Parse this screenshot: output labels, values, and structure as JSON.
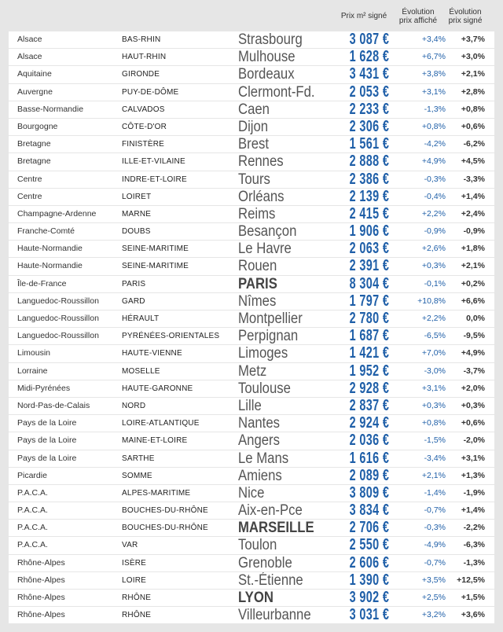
{
  "header": {
    "prix": "Prix m² signé",
    "evo_affiche_1": "Évolution",
    "evo_affiche_2": "prix affiché",
    "evo_signe_1": "Évolution",
    "evo_signe_2": "prix signé"
  },
  "rows": [
    {
      "region": "Alsace",
      "dept": "BAS-RHIN",
      "city": "Strasbourg",
      "price": "3 087 €",
      "evo_affiche": "+3,4%",
      "evo_signe": "+3,7%",
      "bold": false
    },
    {
      "region": "Alsace",
      "dept": "HAUT-RHIN",
      "city": "Mulhouse",
      "price": "1 628 €",
      "evo_affiche": "+6,7%",
      "evo_signe": "+3,0%",
      "bold": false
    },
    {
      "region": "Aquitaine",
      "dept": "GIRONDE",
      "city": "Bordeaux",
      "price": "3 431 €",
      "evo_affiche": "+3,8%",
      "evo_signe": "+2,1%",
      "bold": false
    },
    {
      "region": "Auvergne",
      "dept": "PUY-DE-DÔME",
      "city": "Clermont-Fd.",
      "price": "2 053 €",
      "evo_affiche": "+3,1%",
      "evo_signe": "+2,8%",
      "bold": false
    },
    {
      "region": "Basse-Normandie",
      "dept": "CALVADOS",
      "city": "Caen",
      "price": "2 233 €",
      "evo_affiche": "-1,3%",
      "evo_signe": "+0,8%",
      "bold": false
    },
    {
      "region": "Bourgogne",
      "dept": "CÔTE-D'OR",
      "city": "Dijon",
      "price": "2 306 €",
      "evo_affiche": "+0,8%",
      "evo_signe": "+0,6%",
      "bold": false
    },
    {
      "region": "Bretagne",
      "dept": "FINISTÈRE",
      "city": "Brest",
      "price": "1 561 €",
      "evo_affiche": "-4,2%",
      "evo_signe": "-6,2%",
      "bold": false
    },
    {
      "region": "Bretagne",
      "dept": "ILLE-ET-VILAINE",
      "city": "Rennes",
      "price": "2 888 €",
      "evo_affiche": "+4,9%",
      "evo_signe": "+4,5%",
      "bold": false
    },
    {
      "region": "Centre",
      "dept": "INDRE-ET-LOIRE",
      "city": "Tours",
      "price": "2 386 €",
      "evo_affiche": "-0,3%",
      "evo_signe": "-3,3%",
      "bold": false
    },
    {
      "region": "Centre",
      "dept": "LOIRET",
      "city": "Orléans",
      "price": "2 139 €",
      "evo_affiche": "-0,4%",
      "evo_signe": "+1,4%",
      "bold": false
    },
    {
      "region": "Champagne-Ardenne",
      "dept": "MARNE",
      "city": "Reims",
      "price": "2 415 €",
      "evo_affiche": "+2,2%",
      "evo_signe": "+2,4%",
      "bold": false
    },
    {
      "region": "Franche-Comté",
      "dept": "DOUBS",
      "city": "Besançon",
      "price": "1 906 €",
      "evo_affiche": "-0,9%",
      "evo_signe": "-0,9%",
      "bold": false
    },
    {
      "region": "Haute-Normandie",
      "dept": "SEINE-MARITIME",
      "city": "Le Havre",
      "price": "2 063 €",
      "evo_affiche": "+2,6%",
      "evo_signe": "+1,8%",
      "bold": false
    },
    {
      "region": "Haute-Normandie",
      "dept": "SEINE-MARITIME",
      "city": "Rouen",
      "price": "2 391 €",
      "evo_affiche": "+0,3%",
      "evo_signe": "+2,1%",
      "bold": false
    },
    {
      "region": "Île-de-France",
      "dept": "PARIS",
      "city": "PARIS",
      "price": "8 304 €",
      "evo_affiche": "-0,1%",
      "evo_signe": "+0,2%",
      "bold": true
    },
    {
      "region": "Languedoc-Roussillon",
      "dept": "GARD",
      "city": "Nîmes",
      "price": "1 797 €",
      "evo_affiche": "+10,8%",
      "evo_signe": "+6,6%",
      "bold": false
    },
    {
      "region": "Languedoc-Roussillon",
      "dept": "HÉRAULT",
      "city": "Montpellier",
      "price": "2 780 €",
      "evo_affiche": "+2,2%",
      "evo_signe": "0,0%",
      "bold": false
    },
    {
      "region": "Languedoc-Roussillon",
      "dept": "PYRÉNÉES-ORIENTALES",
      "city": "Perpignan",
      "price": "1 687 €",
      "evo_affiche": "-6,5%",
      "evo_signe": "-9,5%",
      "bold": false
    },
    {
      "region": "Limousin",
      "dept": "HAUTE-VIENNE",
      "city": "Limoges",
      "price": "1 421 €",
      "evo_affiche": "+7,0%",
      "evo_signe": "+4,9%",
      "bold": false
    },
    {
      "region": "Lorraine",
      "dept": "MOSELLE",
      "city": "Metz",
      "price": "1 952 €",
      "evo_affiche": "-3,0%",
      "evo_signe": "-3,7%",
      "bold": false
    },
    {
      "region": "Midi-Pyrénées",
      "dept": "HAUTE-GARONNE",
      "city": "Toulouse",
      "price": "2 928 €",
      "evo_affiche": "+3,1%",
      "evo_signe": "+2,0%",
      "bold": false
    },
    {
      "region": "Nord-Pas-de-Calais",
      "dept": "NORD",
      "city": "Lille",
      "price": "2 837 €",
      "evo_affiche": "+0,3%",
      "evo_signe": "+0,3%",
      "bold": false
    },
    {
      "region": "Pays de la Loire",
      "dept": "LOIRE-ATLANTIQUE",
      "city": "Nantes",
      "price": "2 924 €",
      "evo_affiche": "+0,8%",
      "evo_signe": "+0,6%",
      "bold": false
    },
    {
      "region": "Pays de la Loire",
      "dept": "MAINE-ET-LOIRE",
      "city": "Angers",
      "price": "2 036 €",
      "evo_affiche": "-1,5%",
      "evo_signe": "-2,0%",
      "bold": false
    },
    {
      "region": "Pays de la Loire",
      "dept": "SARTHE",
      "city": "Le Mans",
      "price": "1 616 €",
      "evo_affiche": "-3,4%",
      "evo_signe": "+3,1%",
      "bold": false
    },
    {
      "region": "Picardie",
      "dept": "SOMME",
      "city": "Amiens",
      "price": "2 089 €",
      "evo_affiche": "+2,1%",
      "evo_signe": "+1,3%",
      "bold": false
    },
    {
      "region": "P.A.C.A.",
      "dept": "ALPES-MARITIME",
      "city": "Nice",
      "price": "3 809 €",
      "evo_affiche": "-1,4%",
      "evo_signe": "-1,9%",
      "bold": false
    },
    {
      "region": "P.A.C.A.",
      "dept": "BOUCHES-DU-RHÔNE",
      "city": "Aix-en-Pce",
      "price": "3 834 €",
      "evo_affiche": "-0,7%",
      "evo_signe": "+1,4%",
      "bold": false
    },
    {
      "region": "P.A.C.A.",
      "dept": "BOUCHES-DU-RHÔNE",
      "city": "MARSEILLE",
      "price": "2 706 €",
      "evo_affiche": "-0,3%",
      "evo_signe": "-2,2%",
      "bold": true
    },
    {
      "region": "P.A.C.A.",
      "dept": "VAR",
      "city": "Toulon",
      "price": "2 550 €",
      "evo_affiche": "-4,9%",
      "evo_signe": "-6,3%",
      "bold": false
    },
    {
      "region": "Rhône-Alpes",
      "dept": "ISÈRE",
      "city": "Grenoble",
      "price": "2 606 €",
      "evo_affiche": "-0,7%",
      "evo_signe": "-1,3%",
      "bold": false
    },
    {
      "region": "Rhône-Alpes",
      "dept": "LOIRE",
      "city": "St.-Étienne",
      "price": "1 390 €",
      "evo_affiche": "+3,5%",
      "evo_signe": "+12,5%",
      "bold": false
    },
    {
      "region": "Rhône-Alpes",
      "dept": "RHÔNE",
      "city": "LYON",
      "price": "3 902 €",
      "evo_affiche": "+2,5%",
      "evo_signe": "+1,5%",
      "bold": true
    },
    {
      "region": "Rhône-Alpes",
      "dept": "RHÔNE",
      "city": "Villeurbanne",
      "price": "3 031 €",
      "evo_affiche": "+3,2%",
      "evo_signe": "+3,6%",
      "bold": false
    }
  ]
}
